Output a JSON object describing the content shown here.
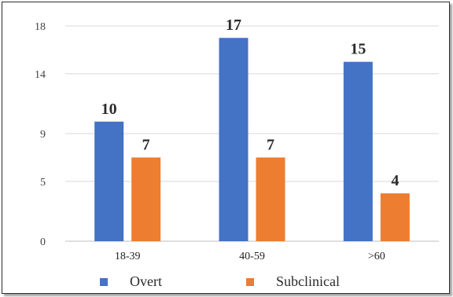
{
  "chart_data": {
    "type": "bar",
    "categories": [
      "18-39",
      "40-59",
      ">60"
    ],
    "series": [
      {
        "name": "Overt",
        "values": [
          10,
          17,
          15
        ],
        "labels": [
          "10",
          "17",
          "15"
        ],
        "color": "#4472C4"
      },
      {
        "name": "Subclinical",
        "values": [
          7,
          7,
          4
        ],
        "labels": [
          "7",
          "7",
          "4"
        ],
        "color": "#ED7D31"
      }
    ],
    "y_ticks": [
      "0",
      "5",
      "9",
      "14",
      "18"
    ],
    "ylim": [
      0,
      18
    ],
    "grid": true,
    "legend_position": "bottom",
    "title": "",
    "xlabel": "",
    "ylabel": ""
  }
}
